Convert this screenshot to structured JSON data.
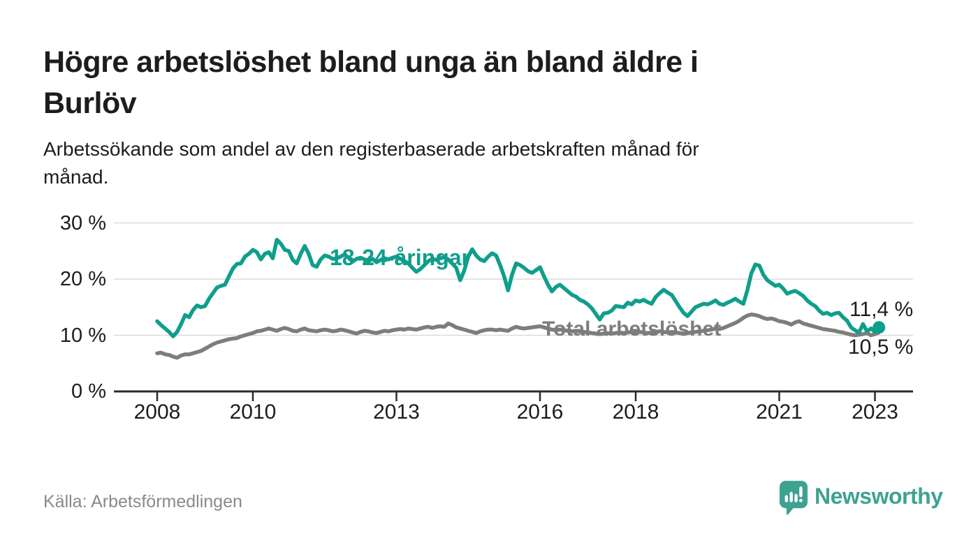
{
  "header": {
    "title_lines": [
      "Högre arbetslöshet bland unga än bland äldre i",
      "Burlöv"
    ],
    "subtitle_lines": [
      "Arbetssökande som andel av den registerbaserade arbetskraften månad för",
      "månad."
    ]
  },
  "footer": {
    "source": "Källa: Arbetsförmedlingen",
    "brand_name": "Newsworthy",
    "brand_icon": "speech-bubble-bar-chart-icon"
  },
  "colors": {
    "ink": "#1d1d1b",
    "muted": "#8a8a88",
    "teal": "#109e8c",
    "gray": "#7d7d7d",
    "brand": "#3ea293",
    "grid": "#dbdbd9",
    "axis": "#2b2b28",
    "background": "#ffffff"
  },
  "chart_data": {
    "type": "line",
    "frequency": "monthly",
    "x_start": "2008-01",
    "x_end": "2023-02",
    "unit": "%",
    "grid": true,
    "legend_position": "inline-labels",
    "ylim": [
      0,
      31
    ],
    "x_tick_years": [
      2008,
      2010,
      2013,
      2016,
      2018,
      2021,
      2023
    ],
    "x_tick_labels": [
      "2008",
      "2010",
      "2013",
      "2016",
      "2018",
      "2021",
      "2023"
    ],
    "y_tick_values": [
      30,
      20,
      10,
      0
    ],
    "y_tick_labels": [
      "30 %",
      "20 %",
      "10 %",
      "0 %"
    ],
    "series": [
      {
        "name": "18-24-åringar",
        "color": "#109e8c",
        "end_value_label": "11,4 %",
        "end_value": 11.4,
        "end_dot": true,
        "values": [
          12.5,
          11.8,
          11.2,
          10.6,
          9.8,
          10.6,
          12.0,
          13.6,
          13.2,
          14.5,
          15.3,
          15.0,
          15.2,
          16.5,
          17.5,
          18.5,
          18.8,
          19.0,
          20.5,
          21.9,
          22.7,
          22.8,
          24.0,
          24.5,
          25.2,
          24.8,
          23.5,
          24.5,
          24.8,
          23.7,
          27.0,
          26.3,
          25.2,
          25.0,
          23.4,
          22.8,
          24.5,
          25.9,
          24.5,
          22.5,
          22.2,
          23.5,
          24.2,
          24.0,
          23.6,
          23.7,
          24.0,
          24.4,
          23.8,
          23.1,
          23.6,
          23.8,
          23.5,
          23.2,
          23.6,
          23.0,
          23.4,
          23.7,
          23.5,
          23.8,
          24.0,
          23.6,
          23.2,
          22.8,
          22.0,
          21.3,
          21.8,
          22.5,
          23.2,
          23.6,
          23.4,
          23.7,
          23.9,
          23.5,
          22.8,
          22.0,
          19.8,
          21.5,
          24.0,
          25.3,
          24.2,
          23.5,
          23.2,
          24.0,
          24.6,
          24.2,
          22.5,
          20.5,
          18.0,
          20.8,
          22.8,
          22.5,
          22.0,
          21.4,
          21.1,
          21.6,
          22.1,
          20.5,
          19.0,
          17.8,
          18.6,
          19.0,
          18.4,
          17.8,
          17.2,
          16.9,
          16.3,
          16.0,
          15.5,
          14.8,
          13.8,
          12.8,
          13.9,
          14.0,
          14.4,
          15.2,
          15.1,
          15.0,
          15.8,
          15.5,
          16.2,
          16.0,
          16.3,
          15.9,
          15.6,
          16.8,
          17.5,
          18.1,
          17.6,
          17.2,
          16.1,
          15.0,
          14.0,
          13.4,
          14.2,
          15.0,
          15.3,
          15.6,
          15.5,
          15.8,
          16.2,
          15.6,
          15.4,
          15.8,
          16.1,
          16.5,
          16.0,
          15.6,
          18.0,
          21.0,
          22.6,
          22.4,
          20.8,
          19.8,
          19.3,
          18.8,
          19.0,
          18.3,
          17.4,
          17.7,
          17.9,
          17.5,
          17.0,
          16.2,
          15.6,
          15.2,
          14.4,
          13.8,
          14.0,
          13.6,
          13.9,
          14.0,
          13.2,
          12.6,
          11.4,
          10.9,
          10.5,
          12.0,
          10.7,
          11.2,
          10.6,
          11.4
        ]
      },
      {
        "name": "Total arbetslöshet",
        "color": "#7d7d7d",
        "end_value_label": "10,5 %",
        "end_value": 10.5,
        "end_dot": false,
        "values": [
          6.8,
          6.9,
          6.6,
          6.5,
          6.2,
          6.0,
          6.4,
          6.6,
          6.6,
          6.8,
          7.0,
          7.2,
          7.6,
          8.0,
          8.4,
          8.7,
          8.9,
          9.1,
          9.3,
          9.4,
          9.5,
          9.8,
          10.0,
          10.2,
          10.4,
          10.7,
          10.8,
          11.0,
          11.2,
          11.0,
          10.8,
          11.1,
          11.3,
          11.1,
          10.8,
          10.7,
          11.0,
          11.2,
          10.9,
          10.8,
          10.7,
          10.9,
          11.0,
          10.9,
          10.7,
          10.8,
          11.0,
          10.9,
          10.7,
          10.5,
          10.3,
          10.6,
          10.8,
          10.7,
          10.5,
          10.4,
          10.6,
          10.8,
          10.7,
          10.9,
          11.0,
          11.1,
          11.0,
          11.2,
          11.1,
          11.0,
          11.2,
          11.4,
          11.5,
          11.3,
          11.5,
          11.6,
          11.5,
          12.1,
          11.8,
          11.4,
          11.2,
          11.0,
          10.8,
          10.6,
          10.4,
          10.7,
          10.9,
          11.0,
          11.0,
          10.9,
          11.0,
          10.9,
          10.8,
          11.2,
          11.5,
          11.3,
          11.2,
          11.3,
          11.4,
          11.5,
          11.6,
          11.4,
          11.2,
          11.0,
          10.9,
          11.0,
          10.9,
          10.8,
          10.7,
          10.8,
          10.7,
          10.6,
          10.5,
          10.4,
          10.3,
          10.2,
          10.3,
          10.4,
          10.3,
          10.4,
          10.5,
          10.4,
          10.5,
          10.6,
          10.5,
          10.6,
          10.5,
          10.4,
          10.5,
          10.6,
          10.7,
          10.6,
          10.5,
          10.6,
          10.5,
          10.4,
          10.3,
          10.4,
          10.5,
          10.6,
          10.7,
          10.8,
          10.9,
          11.0,
          11.2,
          11.1,
          11.3,
          11.6,
          11.9,
          12.2,
          12.6,
          13.1,
          13.5,
          13.7,
          13.6,
          13.4,
          13.1,
          12.9,
          13.0,
          12.8,
          12.5,
          12.4,
          12.2,
          11.9,
          12.3,
          12.5,
          12.1,
          11.9,
          11.7,
          11.5,
          11.3,
          11.1,
          11.0,
          10.9,
          10.8,
          10.6,
          10.5,
          10.3,
          10.1,
          10.0,
          10.1,
          10.2,
          10.4,
          10.0,
          10.2,
          10.5
        ]
      }
    ]
  }
}
